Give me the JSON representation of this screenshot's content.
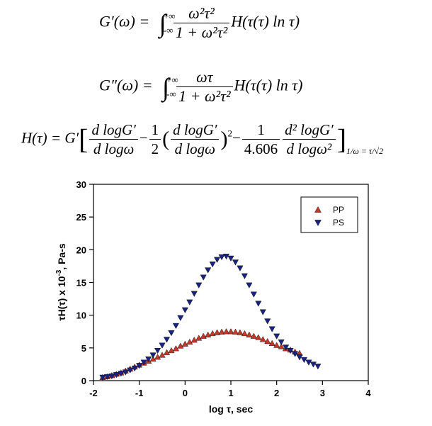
{
  "equations": {
    "eq1_lhs": "G′(ω) = ",
    "eq1_upper": "+∞",
    "eq1_lower": "-∞",
    "eq1_num": "ω²τ²",
    "eq1_den": "1 + ω²τ²",
    "eq1_tail": "H(τ(τ) ln τ)",
    "eq2_lhs": "G″(ω) = ",
    "eq2_upper": "+∞",
    "eq2_lower": "-∞",
    "eq2_num": "ωτ",
    "eq2_den": "1 + ω²τ²",
    "eq2_tail": "H(τ(τ) ln τ)",
    "eq3_lhs": "H(τ) = G′",
    "eq3_f1_num": "d logG′",
    "eq3_f1_den": "d logω",
    "eq3_minus1": "−",
    "eq3_f2_num": "1",
    "eq3_f2_den": "2",
    "eq3_f3_num": "d logG′",
    "eq3_f3_den": "d logω",
    "eq3_pow": "2",
    "eq3_minus2": "−",
    "eq3_f4_num": "1",
    "eq3_f4_den": "4.606",
    "eq3_f5_num": "d² logG′",
    "eq3_f5_den": "d logω²",
    "eq3_eval": "1/ω = τ/√2"
  },
  "chart_data": {
    "type": "scatter",
    "xlabel": "log τ, sec",
    "ylabel": "τH(τ) x 10",
    "ylabel_exp": "-3",
    "ylabel_unit": ", Pa-s",
    "xlim": [
      -2,
      4
    ],
    "ylim": [
      0,
      30
    ],
    "xticks": [
      -2,
      -1,
      0,
      1,
      2,
      3,
      4
    ],
    "yticks": [
      0,
      5,
      10,
      15,
      20,
      25,
      30
    ],
    "grid": false,
    "legend_position": "top-right",
    "series": [
      {
        "name": "PP",
        "marker": "triangle-up",
        "color": "#c0392b",
        "x": [
          -1.8,
          -1.7,
          -1.6,
          -1.5,
          -1.4,
          -1.3,
          -1.2,
          -1.1,
          -1.0,
          -0.9,
          -0.8,
          -0.7,
          -0.6,
          -0.5,
          -0.4,
          -0.3,
          -0.2,
          -0.1,
          0.0,
          0.1,
          0.2,
          0.3,
          0.4,
          0.5,
          0.6,
          0.7,
          0.8,
          0.9,
          1.0,
          1.1,
          1.2,
          1.3,
          1.4,
          1.5,
          1.6,
          1.7,
          1.8,
          1.9,
          2.0,
          2.1,
          2.2,
          2.3,
          2.4,
          2.5
        ],
        "y": [
          0.5,
          0.6,
          0.8,
          1.0,
          1.2,
          1.5,
          1.8,
          2.1,
          2.4,
          2.7,
          3.0,
          3.3,
          3.6,
          3.9,
          4.3,
          4.6,
          4.9,
          5.3,
          5.6,
          5.9,
          6.2,
          6.5,
          6.8,
          7.0,
          7.2,
          7.35,
          7.45,
          7.5,
          7.5,
          7.45,
          7.35,
          7.2,
          7.0,
          6.8,
          6.6,
          6.3,
          6.0,
          5.7,
          5.4,
          5.2,
          4.9,
          4.7,
          4.4,
          4.2
        ]
      },
      {
        "name": "PS",
        "marker": "triangle-down",
        "color": "#1a237e",
        "x": [
          -1.8,
          -1.7,
          -1.6,
          -1.5,
          -1.4,
          -1.3,
          -1.2,
          -1.1,
          -1.0,
          -0.9,
          -0.8,
          -0.7,
          -0.6,
          -0.5,
          -0.4,
          -0.3,
          -0.2,
          -0.1,
          0.0,
          0.1,
          0.2,
          0.3,
          0.4,
          0.5,
          0.6,
          0.7,
          0.8,
          0.9,
          1.0,
          1.1,
          1.2,
          1.3,
          1.4,
          1.5,
          1.6,
          1.7,
          1.8,
          1.9,
          2.0,
          2.1,
          2.2,
          2.3,
          2.4,
          2.5,
          2.6,
          2.7,
          2.8,
          2.9
        ],
        "y": [
          0.5,
          0.6,
          0.7,
          0.9,
          1.1,
          1.3,
          1.6,
          1.9,
          2.3,
          2.8,
          3.3,
          3.9,
          4.6,
          5.4,
          6.3,
          7.3,
          8.4,
          9.6,
          10.8,
          12.0,
          13.3,
          14.6,
          15.8,
          16.9,
          17.8,
          18.5,
          18.9,
          19.0,
          18.7,
          18.1,
          17.2,
          16.0,
          14.6,
          13.2,
          11.8,
          10.5,
          9.1,
          7.9,
          6.8,
          5.9,
          5.1,
          4.6,
          4.1,
          3.6,
          3.2,
          2.8,
          2.5,
          2.2
        ]
      }
    ]
  }
}
